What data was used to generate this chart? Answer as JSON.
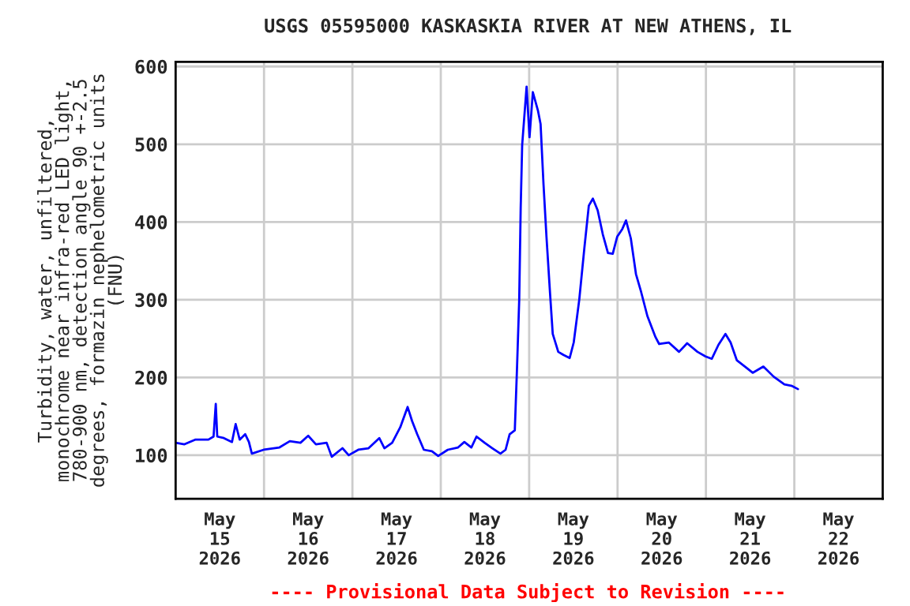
{
  "chart_data": {
    "type": "line",
    "title": "USGS 05595000 KASKASKIA RIVER AT NEW ATHENS, IL",
    "ylabel": "Turbidity, water, unfiltered,\nmonochrome near infra-red LED light,\n780-900 nm, detection angle 90 +-2.5\ndegrees, formazin nephelometric units\n(FNU)",
    "annotations": [
      "---- Provisional Data Subject to Revision ----"
    ],
    "x": [
      "2026-05-15T00:00",
      "2026-05-15T02:24",
      "2026-05-15T05:18",
      "2026-05-15T08:54",
      "2026-05-15T10:18",
      "2026-05-15T10:54",
      "2026-05-15T11:18",
      "2026-05-15T13:06",
      "2026-05-15T15:18",
      "2026-05-15T16:18",
      "2026-05-15T17:24",
      "2026-05-15T18:54",
      "2026-05-15T19:54",
      "2026-05-15T20:42",
      "2026-05-15T23:54",
      "2026-05-16T04:12",
      "2026-05-16T07:00",
      "2026-05-16T09:54",
      "2026-05-16T12:00",
      "2026-05-16T14:06",
      "2026-05-16T17:00",
      "2026-05-16T18:24",
      "2026-05-16T21:18",
      "2026-05-16T23:00",
      "2026-05-17T01:36",
      "2026-05-17T04:24",
      "2026-05-17T07:18",
      "2026-05-17T08:42",
      "2026-05-17T10:48",
      "2026-05-17T13:00",
      "2026-05-17T15:00",
      "2026-05-17T16:12",
      "2026-05-17T17:36",
      "2026-05-17T19:24",
      "2026-05-17T21:36",
      "2026-05-17T23:18",
      "2026-05-18T01:54",
      "2026-05-18T04:42",
      "2026-05-18T06:24",
      "2026-05-18T08:18",
      "2026-05-18T09:42",
      "2026-05-18T11:54",
      "2026-05-18T14:00",
      "2026-05-18T16:12",
      "2026-05-18T17:36",
      "2026-05-18T18:42",
      "2026-05-18T20:06",
      "2026-05-18T20:42",
      "2026-05-18T21:18",
      "2026-05-18T21:42",
      "2026-05-18T22:06",
      "2026-05-18T23:18",
      "2026-05-19T00:06",
      "2026-05-19T01:00",
      "2026-05-19T02:24",
      "2026-05-19T03:06",
      "2026-05-19T03:54",
      "2026-05-19T04:42",
      "2026-05-19T05:42",
      "2026-05-19T06:24",
      "2026-05-19T07:54",
      "2026-05-19T09:18",
      "2026-05-19T11:00",
      "2026-05-19T12:06",
      "2026-05-19T13:36",
      "2026-05-19T15:00",
      "2026-05-19T16:12",
      "2026-05-19T17:18",
      "2026-05-19T18:36",
      "2026-05-19T20:00",
      "2026-05-19T21:24",
      "2026-05-19T22:42",
      "2026-05-19T23:54",
      "2026-05-20T01:18",
      "2026-05-20T02:18",
      "2026-05-20T03:36",
      "2026-05-20T05:00",
      "2026-05-20T06:24",
      "2026-05-20T08:06",
      "2026-05-20T10:18",
      "2026-05-20T11:18",
      "2026-05-20T13:54",
      "2026-05-20T16:42",
      "2026-05-20T18:54",
      "2026-05-20T21:42",
      "2026-05-20T23:54",
      "2026-05-21T01:36",
      "2026-05-21T03:24",
      "2026-05-21T05:18",
      "2026-05-21T06:42",
      "2026-05-21T08:24",
      "2026-05-21T10:36",
      "2026-05-21T12:42",
      "2026-05-21T15:36",
      "2026-05-21T18:24",
      "2026-05-21T21:18",
      "2026-05-21T23:24",
      "2026-05-22T01:00"
    ],
    "series": [
      {
        "color": "#0000ff",
        "values": [
          116,
          114,
          120,
          120,
          124,
          166,
          124,
          122,
          117,
          140,
          120,
          127,
          117,
          102,
          107,
          110,
          118,
          116,
          125,
          114,
          116,
          98,
          109,
          100,
          107,
          109,
          122,
          109,
          116,
          136,
          162,
          144,
          127,
          107,
          105,
          99,
          107,
          110,
          117,
          110,
          124,
          116,
          109,
          102,
          107,
          127,
          132,
          212,
          300,
          418,
          499,
          574,
          509,
          567,
          543,
          526,
          448,
          381,
          306,
          256,
          233,
          229,
          225,
          245,
          300,
          367,
          421,
          430,
          415,
          384,
          360,
          359,
          381,
          391,
          402,
          379,
          333,
          310,
          279,
          252,
          243,
          245,
          233,
          244,
          233,
          227,
          224,
          242,
          256,
          245,
          222,
          214,
          206,
          214,
          201,
          191,
          189,
          185
        ]
      }
    ],
    "xlim": [
      "2026-05-15T00:00",
      "2026-05-23T00:00"
    ],
    "xticks": [
      {
        "value": "2026-05-15T12:00",
        "label": "May\n15\n2026"
      },
      {
        "value": "2026-05-16T12:00",
        "label": "May\n16\n2026"
      },
      {
        "value": "2026-05-17T12:00",
        "label": "May\n17\n2026"
      },
      {
        "value": "2026-05-18T12:00",
        "label": "May\n18\n2026"
      },
      {
        "value": "2026-05-19T12:00",
        "label": "May\n19\n2026"
      },
      {
        "value": "2026-05-20T12:00",
        "label": "May\n20\n2026"
      },
      {
        "value": "2026-05-21T12:00",
        "label": "May\n21\n2026"
      },
      {
        "value": "2026-05-22T12:00",
        "label": "May\n22\n2026"
      },
      {
        "value": "2026-05-16T00:00",
        "label": null
      },
      {
        "value": "2026-05-17T00:00",
        "label": null
      },
      {
        "value": "2026-05-18T00:00",
        "label": null
      },
      {
        "value": "2026-05-19T00:00",
        "label": null
      },
      {
        "value": "2026-05-20T00:00",
        "label": null
      },
      {
        "value": "2026-05-21T00:00",
        "label": null
      },
      {
        "value": "2026-05-22T00:00",
        "label": null
      }
    ],
    "ylim": [
      44,
      606
    ],
    "yticks": [
      100,
      200,
      300,
      400,
      500,
      600
    ],
    "grid": true,
    "legend": false
  }
}
